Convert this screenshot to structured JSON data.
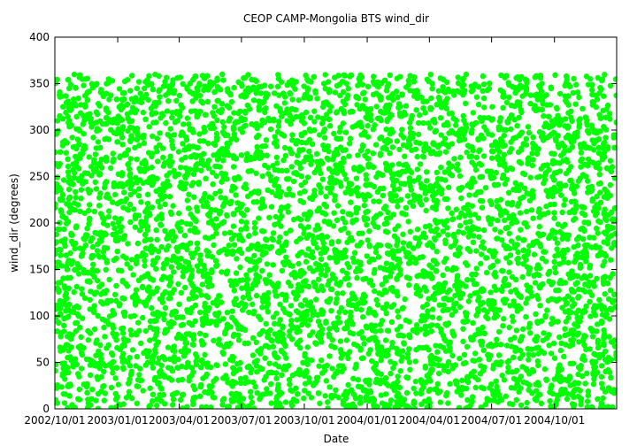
{
  "chart_data": {
    "type": "scatter",
    "title": "CEOP CAMP-Mongolia BTS  wind_dir",
    "xlabel": "Date",
    "ylabel": "wind_dir (degrees)",
    "x_scale": "date",
    "xlim": [
      "2002-10-01",
      "2004-12-31"
    ],
    "ylim": [
      0,
      400
    ],
    "x_ticks": [
      "2002/10/01",
      "2003/01/01",
      "2003/04/01",
      "2003/07/01",
      "2003/10/01",
      "2004/01/01",
      "2004/04/01",
      "2004/07/01",
      "2004/10/01"
    ],
    "x_tick_labels": [
      "2002/10/01",
      "2003/01/01",
      "2003/04/01",
      "2003/07/01",
      "2003/10/01",
      "2004/01/01",
      "2004/04/01",
      "2004/07/01",
      "2004/10/01"
    ],
    "y_ticks": [
      0,
      50,
      100,
      150,
      200,
      250,
      300,
      350,
      400
    ],
    "y_tick_labels": [
      "0",
      "50",
      "100",
      "150",
      "200",
      "250",
      "300",
      "350",
      "400"
    ],
    "grid": false,
    "legend": "none",
    "series": [
      {
        "color": "#00ff00",
        "value_range": [
          0,
          360
        ],
        "x_range": [
          "2002-10-01",
          "2004-12-31"
        ]
      }
    ]
  }
}
